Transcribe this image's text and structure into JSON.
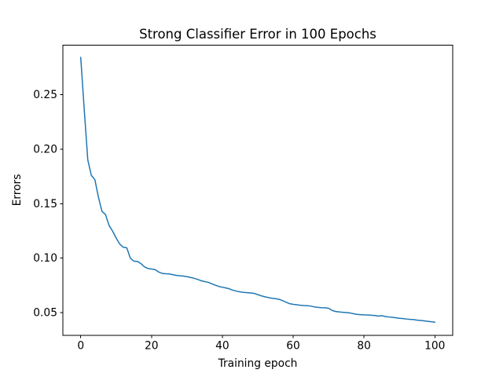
{
  "chart_data": {
    "type": "line",
    "title": "Strong Classifier Error in 100 Epochs",
    "xlabel": "Training epoch",
    "ylabel": "Errors",
    "line_color": "#1f77b4",
    "background_color": "#ffffff",
    "grid": false,
    "legend": null,
    "xlim": [
      -5.04,
      105.04
    ],
    "ylim": [
      0.0291,
      0.2955
    ],
    "xticks": [
      0,
      20,
      40,
      60,
      80,
      100
    ],
    "xtick_labels": [
      "0",
      "20",
      "40",
      "60",
      "80",
      "100"
    ],
    "yticks": [
      0.05,
      0.1,
      0.15,
      0.2,
      0.25
    ],
    "ytick_labels": [
      "0.05",
      "0.10",
      "0.15",
      "0.20",
      "0.25"
    ],
    "series": [
      {
        "name": "strong-classifier-error",
        "x": [
          0,
          1,
          2,
          3,
          4,
          5,
          6,
          7,
          8,
          9,
          10,
          11,
          12,
          13,
          14,
          15,
          16,
          17,
          18,
          19,
          20,
          21,
          22,
          23,
          24,
          25,
          26,
          27,
          28,
          29,
          30,
          31,
          32,
          33,
          34,
          35,
          36,
          37,
          38,
          39,
          40,
          41,
          42,
          43,
          44,
          45,
          46,
          47,
          48,
          49,
          50,
          51,
          52,
          53,
          54,
          55,
          56,
          57,
          58,
          59,
          60,
          61,
          62,
          63,
          64,
          65,
          66,
          67,
          68,
          69,
          70,
          71,
          72,
          73,
          74,
          75,
          76,
          77,
          78,
          79,
          80,
          81,
          82,
          83,
          84,
          85,
          86,
          87,
          88,
          89,
          90,
          91,
          92,
          93,
          94,
          95,
          96,
          97,
          98,
          99,
          100
        ],
        "y": [
          0.2843,
          0.236,
          0.19,
          0.176,
          0.172,
          0.156,
          0.143,
          0.14,
          0.13,
          0.1248,
          0.1185,
          0.113,
          0.11,
          0.1095,
          0.1,
          0.0972,
          0.097,
          0.095,
          0.092,
          0.0905,
          0.09,
          0.0895,
          0.0873,
          0.086,
          0.0857,
          0.0855,
          0.0848,
          0.0842,
          0.0838,
          0.0835,
          0.083,
          0.0823,
          0.0815,
          0.0805,
          0.0793,
          0.0785,
          0.0778,
          0.0765,
          0.0752,
          0.074,
          0.0733,
          0.0726,
          0.0718,
          0.0705,
          0.0697,
          0.069,
          0.0686,
          0.0683,
          0.068,
          0.0676,
          0.0665,
          0.0654,
          0.0645,
          0.0638,
          0.0632,
          0.0628,
          0.0622,
          0.061,
          0.0595,
          0.0582,
          0.0576,
          0.0572,
          0.0568,
          0.0565,
          0.0563,
          0.056,
          0.0552,
          0.0548,
          0.0545,
          0.0544,
          0.054,
          0.052,
          0.051,
          0.0506,
          0.0503,
          0.05,
          0.0497,
          0.049,
          0.0484,
          0.0481,
          0.0479,
          0.0478,
          0.0476,
          0.0474,
          0.0468,
          0.0472,
          0.0464,
          0.046,
          0.0457,
          0.0452,
          0.0448,
          0.0445,
          0.0441,
          0.0438,
          0.0436,
          0.0431,
          0.0428,
          0.0424,
          0.042,
          0.0416,
          0.0412
        ]
      }
    ]
  }
}
